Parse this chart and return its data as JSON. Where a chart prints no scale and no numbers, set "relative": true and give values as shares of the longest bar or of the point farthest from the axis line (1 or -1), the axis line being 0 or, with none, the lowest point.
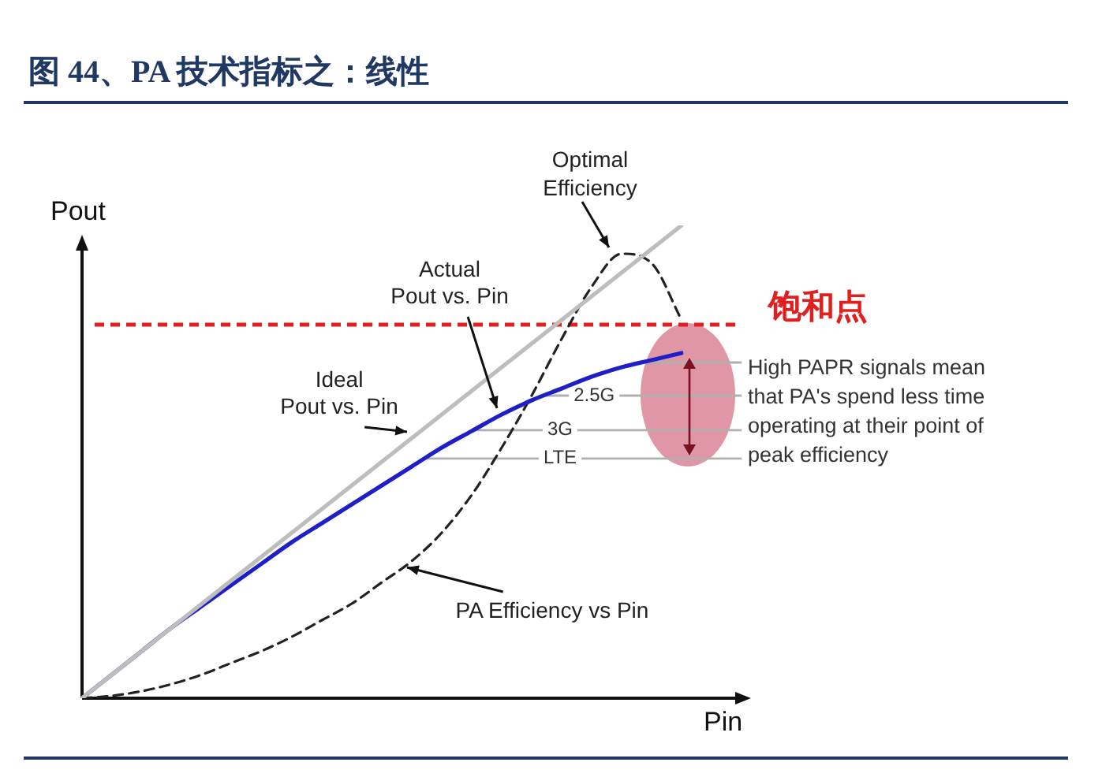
{
  "chart_data": {
    "type": "line",
    "title": "图 44、PA 技术指标之：线性",
    "xlabel": "Pin",
    "ylabel": "Pout",
    "relative": true,
    "marker": "none",
    "legend": false,
    "categories": [
      null,
      null,
      null,
      null,
      null,
      null,
      null,
      null,
      null,
      null,
      null,
      null,
      null,
      null,
      null,
      null,
      null,
      null,
      null,
      null,
      null
    ],
    "series": [
      {
        "name": "Ideal Pout vs. Pin",
        "color": "#bdbdbd",
        "line_style": "solid",
        "values": [
          0,
          0.05,
          0.1,
          0.15,
          0.2,
          0.25,
          0.3,
          0.35,
          0.4,
          0.45,
          0.5,
          0.55,
          0.6,
          0.65,
          0.7,
          0.75,
          0.8,
          0.85,
          0.9,
          0.95,
          1
        ]
      },
      {
        "name": "Actual Pout vs. Pin",
        "color": "#1f1fc8",
        "line_style": "solid",
        "values": [
          0,
          0.05,
          0.1,
          0.15,
          0.195,
          0.24,
          0.285,
          0.33,
          0.37,
          0.41,
          0.45,
          0.49,
          0.53,
          0.565,
          0.6,
          0.63,
          0.655,
          0.68,
          0.7,
          0.715,
          0.73
        ]
      },
      {
        "name": "PA Efficiency vs Pin",
        "color": "#222222",
        "line_style": "dashed",
        "values": [
          0,
          0.005,
          0.015,
          0.03,
          0.05,
          0.075,
          0.1,
          0.13,
          0.165,
          0.2,
          0.245,
          0.29,
          0.35,
          0.43,
          0.53,
          0.64,
          0.76,
          0.87,
          0.94,
          0.92,
          0.8
        ]
      }
    ],
    "ref_lines": [
      {
        "axis": "y",
        "value": 0.79,
        "label": "饱和点",
        "color": "#e02020",
        "line_style": "dashed"
      },
      {
        "axis": "y",
        "value": 0.71,
        "label": null,
        "color": "#b0b0b0",
        "line_style": "solid"
      },
      {
        "axis": "y",
        "value": 0.64,
        "label": "2.5G",
        "color": "#b0b0b0",
        "line_style": "solid"
      },
      {
        "axis": "y",
        "value": 0.567,
        "label": "3G",
        "color": "#b0b0b0",
        "line_style": "solid"
      },
      {
        "axis": "y",
        "value": 0.507,
        "label": "LTE",
        "color": "#b0b0b0",
        "line_style": "solid"
      }
    ],
    "annotations": [
      "Optimal Efficiency",
      "High PAPR signals mean that PA's spend less time operating at their point of peak efficiency"
    ]
  }
}
